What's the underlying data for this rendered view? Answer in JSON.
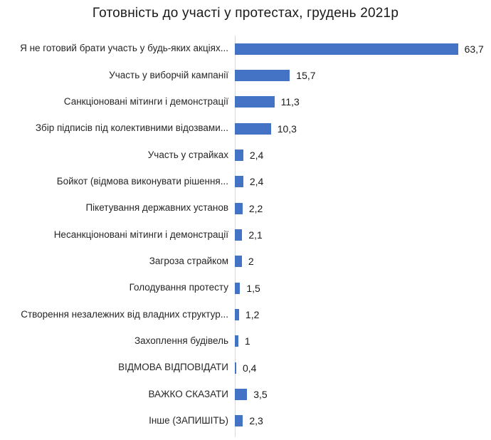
{
  "chart_data": {
    "type": "bar",
    "orientation": "horizontal",
    "title": "Готовність до участі у протестах, грудень 2021р",
    "categories": [
      "Я не готовий брати участь у будь-яких акціях...",
      "Участь у виборчій кампанії",
      "Санкціоновані мітинги і демонстрації",
      "Збір підписів під колективними відозвами...",
      "Участь у страйках",
      "Бойкот (відмова виконувати рішення...",
      "Пікетування державних установ",
      "Несанкціоновані мітинги і демонстрації",
      "Загроза страйком",
      "Голодування протесту",
      "Створення незалежних від владних структур...",
      "Захоплення будівель",
      "ВІДМОВА ВІДПОВІДАТИ",
      "ВАЖКО СКАЗАТИ",
      "Інше (ЗАПИШІТЬ)"
    ],
    "values": [
      63.7,
      15.7,
      11.3,
      10.3,
      2.4,
      2.4,
      2.2,
      2.1,
      2,
      1.5,
      1.2,
      1,
      0.4,
      3.5,
      2.3
    ],
    "value_labels": [
      "63,7",
      "15,7",
      "11,3",
      "10,3",
      "2,4",
      "2,4",
      "2,2",
      "2,1",
      "2",
      "1,5",
      "1,2",
      "1",
      "0,4",
      "3,5",
      "2,3"
    ],
    "xlim": [
      0,
      65
    ],
    "xlabel": "",
    "ylabel": "",
    "grid": false,
    "legend": false,
    "bar_color": "#4472C4",
    "axis_line_color": "#d9d9d9"
  }
}
